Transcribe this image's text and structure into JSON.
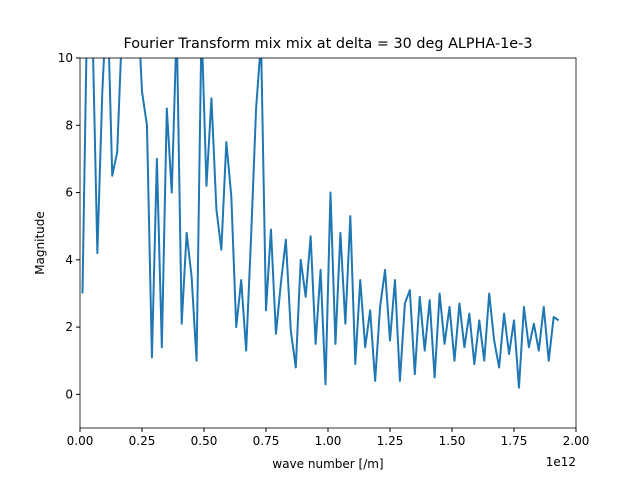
{
  "chart_data": {
    "type": "line",
    "title": "Fourier Transform mix mix at delta = 30 deg ALPHA-1e-3",
    "x_label": "wave number [/m]",
    "y_label": "Magnitude",
    "x_offset_label": "1e12",
    "xlim": [
      0,
      2
    ],
    "ylim": [
      -1,
      10
    ],
    "xticks": [
      {
        "value": 0,
        "label": "0.00"
      },
      0.25,
      {
        "value": 0.5,
        "label": "0.50"
      },
      0.75,
      {
        "value": 1,
        "label": "1.00"
      },
      1.25,
      {
        "value": 1.5,
        "label": "1.50"
      },
      1.75,
      {
        "value": 2,
        "label": "2.00"
      }
    ],
    "yticks": [
      0,
      2,
      4,
      6,
      8,
      10
    ],
    "x": [
      0.01,
      0.03,
      0.05,
      0.07,
      0.09,
      0.11,
      0.13,
      0.15,
      0.17,
      0.19,
      0.21,
      0.23,
      0.25,
      0.27,
      0.29,
      0.31,
      0.33,
      0.35,
      0.37,
      0.39,
      0.41,
      0.43,
      0.45,
      0.47,
      0.49,
      0.51,
      0.53,
      0.55,
      0.57,
      0.59,
      0.61,
      0.63,
      0.65,
      0.67,
      0.69,
      0.71,
      0.73,
      0.75,
      0.77,
      0.79,
      0.81,
      0.83,
      0.85,
      0.87,
      0.89,
      0.91,
      0.93,
      0.95,
      0.97,
      0.99,
      1.01,
      1.03,
      1.05,
      1.07,
      1.09,
      1.11,
      1.13,
      1.15,
      1.17,
      1.19,
      1.21,
      1.23,
      1.25,
      1.27,
      1.29,
      1.31,
      1.33,
      1.35,
      1.37,
      1.39,
      1.41,
      1.43,
      1.45,
      1.47,
      1.49,
      1.51,
      1.53,
      1.55,
      1.57,
      1.59,
      1.61,
      1.63,
      1.65,
      1.67,
      1.69,
      1.71,
      1.73,
      1.75,
      1.77,
      1.79,
      1.81,
      1.83,
      1.85,
      1.87,
      1.89,
      1.91,
      1.93
    ],
    "series": [
      {
        "color": "#1f77b4",
        "values": [
          3.0,
          12,
          11,
          4.2,
          9,
          12,
          6.5,
          7.2,
          11,
          13,
          11,
          12,
          9,
          8,
          1.1,
          7,
          1.4,
          8.5,
          6,
          11,
          2.1,
          4.8,
          3.5,
          1.0,
          11,
          6.2,
          8.8,
          5.5,
          4.3,
          7.5,
          5.9,
          2.0,
          3.4,
          1.3,
          4.7,
          8.5,
          10.5,
          2.5,
          4.9,
          1.8,
          3.3,
          4.6,
          1.9,
          0.8,
          4.0,
          2.9,
          4.7,
          1.5,
          3.7,
          0.3,
          6.0,
          1.5,
          4.8,
          2.1,
          5.3,
          0.9,
          3.4,
          1.4,
          2.5,
          0.4,
          2.6,
          3.7,
          1.6,
          3.4,
          0.4,
          2.7,
          3.1,
          0.6,
          2.9,
          1.3,
          2.8,
          0.5,
          3.0,
          1.5,
          2.6,
          1.0,
          2.7,
          1.4,
          2.4,
          0.9,
          2.2,
          1.0,
          3.0,
          1.6,
          0.8,
          2.4,
          1.2,
          2.2,
          0.2,
          2.6,
          1.4,
          2.1,
          1.3,
          2.6,
          1.0,
          2.3,
          2.2
        ]
      }
    ]
  }
}
